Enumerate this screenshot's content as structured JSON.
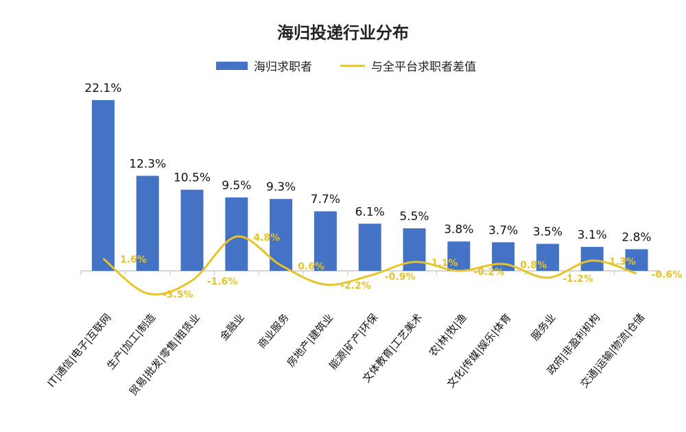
{
  "colors": {
    "bar": "#4472c4",
    "line": "#e8c325",
    "axis": "#c8c8c8",
    "text": "#111111"
  },
  "chart_data": {
    "type": "bar",
    "title": "海归投递行业分布",
    "legend_position": "top",
    "categories": [
      "IT|通信|电子|互联网",
      "生产|加工|制造",
      "贸易|批发|零售|租赁业",
      "金融业",
      "商业服务",
      "房地产|建筑业",
      "能源|矿产|环保",
      "文体教育|工艺美术",
      "农|林|牧|渔",
      "文化|传媒|娱乐|体育",
      "服务业",
      "政府|非盈利机构",
      "交通|运输|物流|仓储"
    ],
    "series": [
      {
        "name": "海归求职者",
        "type": "bar",
        "values": [
          22.1,
          12.3,
          10.5,
          9.5,
          9.3,
          7.7,
          6.1,
          5.5,
          3.8,
          3.7,
          3.5,
          3.1,
          2.8
        ],
        "labels": [
          "22.1%",
          "12.3%",
          "10.5%",
          "9.5%",
          "9.3%",
          "7.7%",
          "6.1%",
          "5.5%",
          "3.8%",
          "3.7%",
          "3.5%",
          "3.1%",
          "2.8%"
        ]
      },
      {
        "name": "与全平台求职者差值",
        "type": "line",
        "smooth": true,
        "values": [
          1.6,
          -3.5,
          -1.6,
          4.8,
          0.6,
          -2.2,
          -0.9,
          1.1,
          -0.2,
          0.8,
          -1.2,
          1.3,
          -0.6
        ],
        "labels": [
          "1.6%",
          "-3.5%",
          "-1.6%",
          "4.8%",
          "0.6%",
          "-2.2%",
          "-0.9%",
          "1.1%",
          "-0.2%",
          "0.8%",
          "-1.2%",
          "1.3%",
          "-0.6%"
        ]
      }
    ],
    "ylim": [
      0,
      22.1
    ],
    "grid": false
  }
}
